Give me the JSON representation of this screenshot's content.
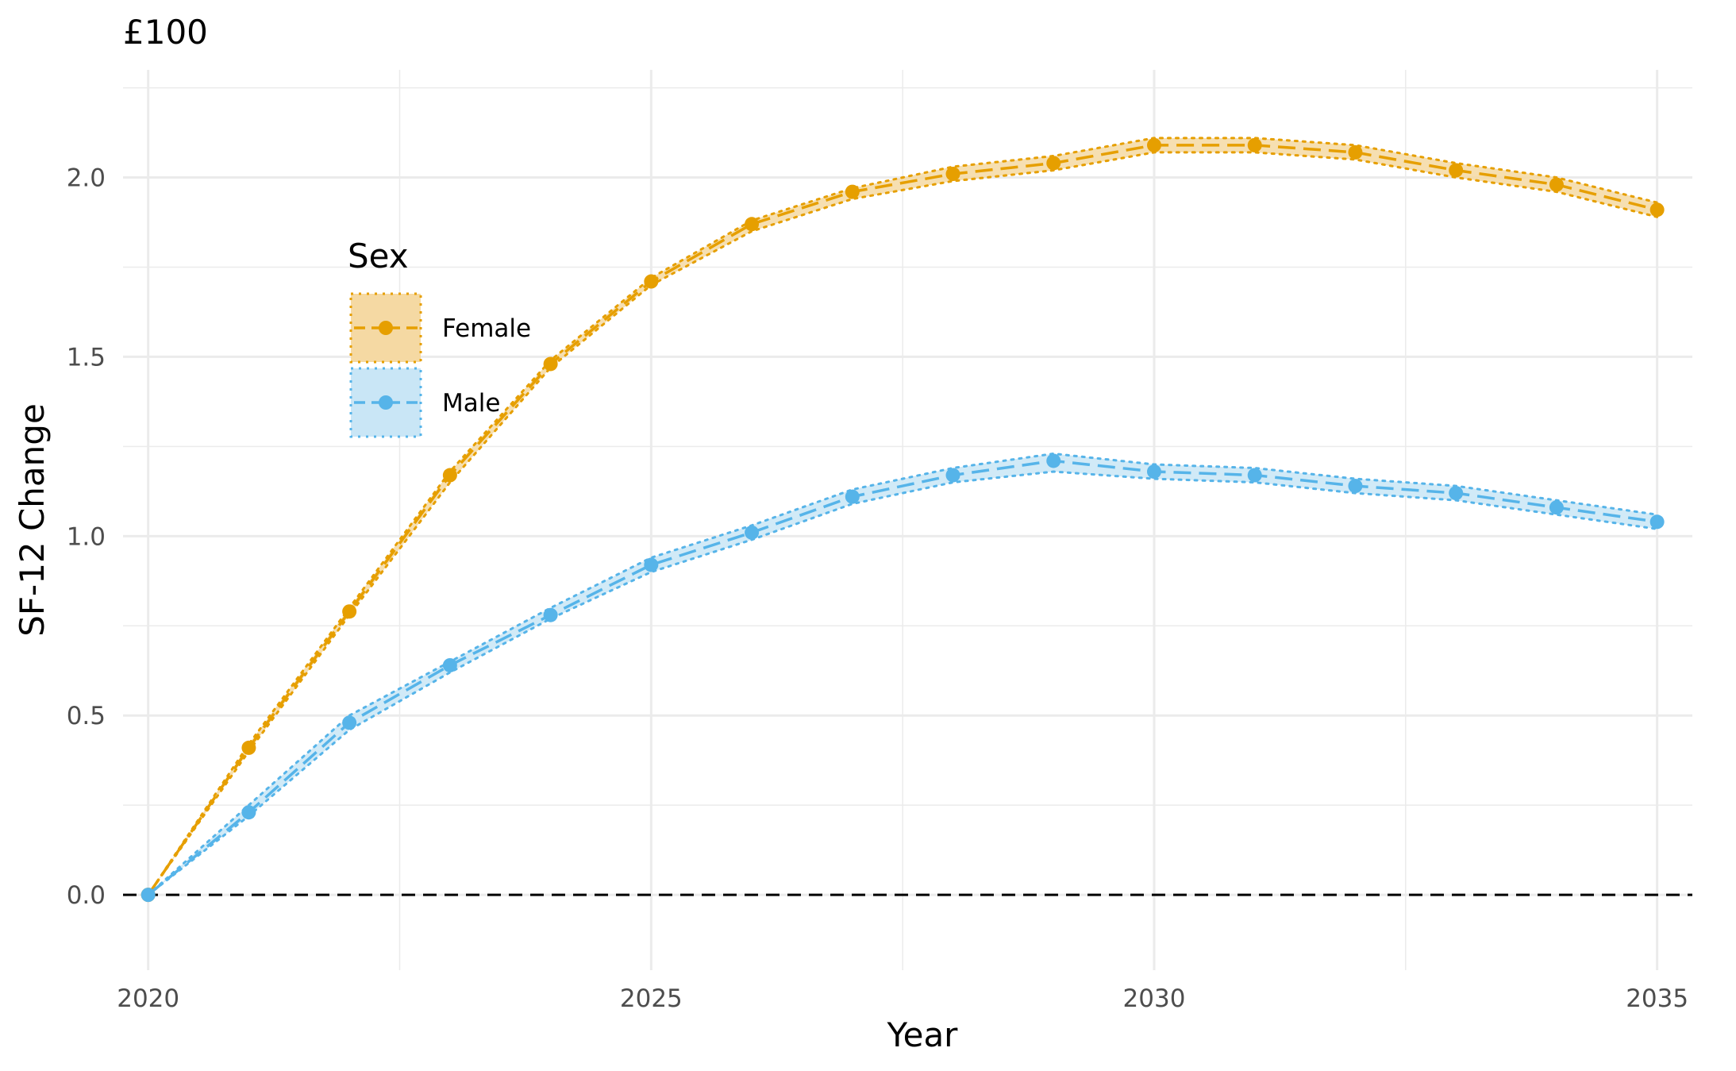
{
  "chart_data": {
    "type": "line",
    "title": "£100",
    "xlabel": "Year",
    "ylabel": "SF-12 Change",
    "xlim": [
      2019.75,
      2035.35
    ],
    "ylim": [
      -0.21,
      2.3
    ],
    "x_ticks": [
      2020,
      2025,
      2030,
      2035
    ],
    "x_tick_labels": [
      "2020",
      "2025",
      "2030",
      "2035"
    ],
    "y_ticks": [
      0.0,
      0.5,
      1.0,
      1.5,
      2.0
    ],
    "y_tick_labels": [
      "0.0",
      "0.5",
      "1.0",
      "1.5",
      "2.0"
    ],
    "grid": true,
    "reference_line": {
      "y": 0,
      "style": "dashed",
      "color": "#000000"
    },
    "legend": {
      "title": "Sex",
      "placement": "left-inside-top"
    },
    "x": [
      2020,
      2021,
      2022,
      2023,
      2024,
      2025,
      2026,
      2027,
      2028,
      2029,
      2030,
      2031,
      2032,
      2033,
      2034,
      2035
    ],
    "series": [
      {
        "name": "Female",
        "color": "#E69F00",
        "fill": "#F5D9A3",
        "values": [
          0.0,
          0.41,
          0.79,
          1.17,
          1.48,
          1.71,
          1.87,
          1.96,
          2.01,
          2.04,
          2.09,
          2.09,
          2.07,
          2.02,
          1.98,
          1.91
        ],
        "lower": [
          0.0,
          0.4,
          0.78,
          1.15,
          1.47,
          1.7,
          1.85,
          1.94,
          1.99,
          2.02,
          2.07,
          2.07,
          2.05,
          2.0,
          1.96,
          1.89
        ],
        "upper": [
          0.0,
          0.42,
          0.8,
          1.18,
          1.49,
          1.72,
          1.88,
          1.97,
          2.03,
          2.06,
          2.11,
          2.11,
          2.09,
          2.04,
          2.0,
          1.93
        ]
      },
      {
        "name": "Male",
        "color": "#56B4E9",
        "fill": "#C9E6F6",
        "values": [
          0.0,
          0.23,
          0.48,
          0.64,
          0.78,
          0.92,
          1.01,
          1.11,
          1.17,
          1.21,
          1.18,
          1.17,
          1.14,
          1.12,
          1.08,
          1.04
        ],
        "lower": [
          0.0,
          0.22,
          0.46,
          0.62,
          0.77,
          0.9,
          0.99,
          1.09,
          1.15,
          1.18,
          1.16,
          1.15,
          1.12,
          1.1,
          1.06,
          1.02
        ],
        "upper": [
          0.0,
          0.25,
          0.5,
          0.65,
          0.8,
          0.94,
          1.03,
          1.13,
          1.19,
          1.23,
          1.2,
          1.19,
          1.16,
          1.14,
          1.1,
          1.06
        ]
      }
    ]
  }
}
